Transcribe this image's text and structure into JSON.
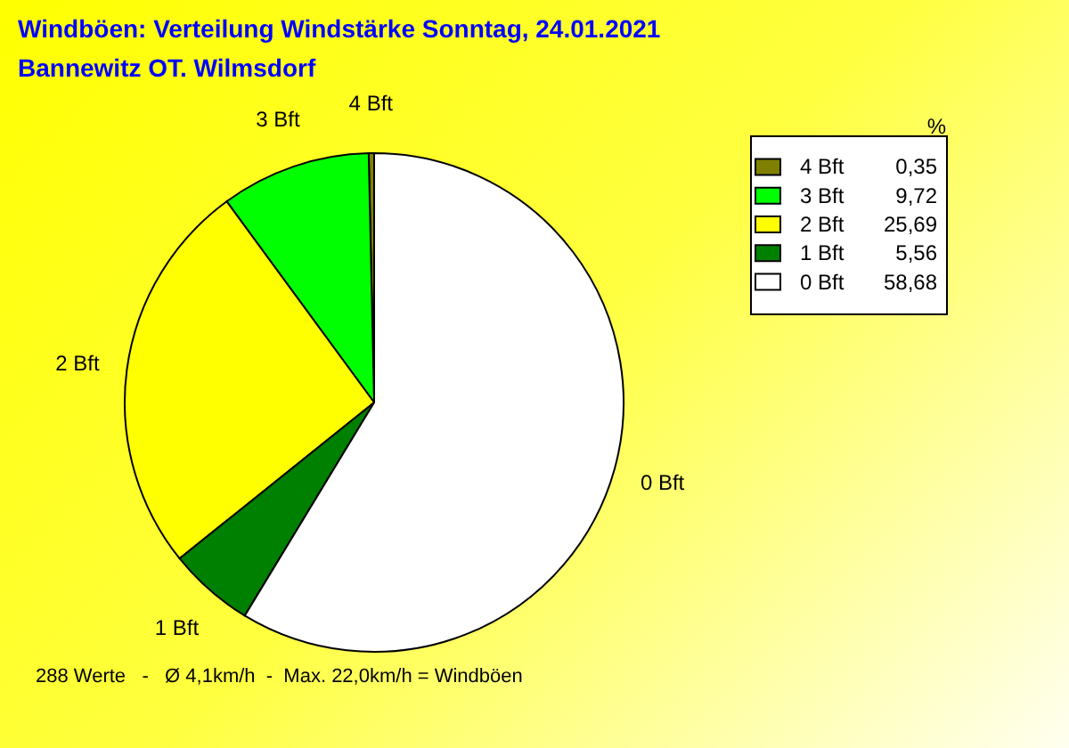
{
  "chart_data": {
    "type": "pie",
    "title": "Windböen: Verteilung Windstärke  Sonntag, 24.01.2021",
    "subtitle": "Bannewitz OT. Wilmsdorf",
    "legend_title": "%",
    "categories": [
      "4 Bft",
      "3 Bft",
      "2 Bft",
      "1 Bft",
      "0 Bft"
    ],
    "values": [
      0.35,
      9.72,
      25.69,
      5.56,
      58.68
    ],
    "colors": [
      "#808000",
      "#00ff00",
      "#ffff00",
      "#008000",
      "#ffffff"
    ],
    "value_labels": [
      "0,35",
      "9,72",
      "25,69",
      "5,56",
      "58,68"
    ],
    "legend": "top right",
    "annotations": [
      "288 Werte   -   Ø 4,1km/h  -  Max. 22,0km/h = Windböen"
    ]
  }
}
